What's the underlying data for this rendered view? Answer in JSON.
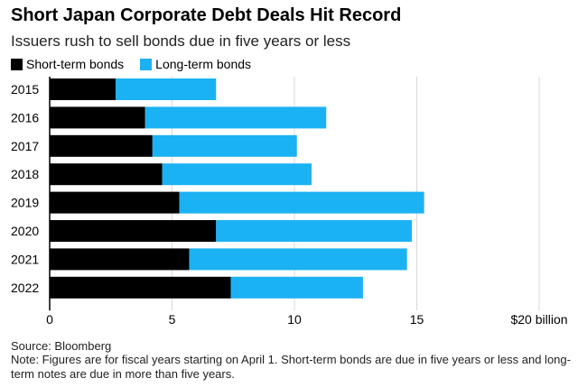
{
  "colors": {
    "short": "#000000",
    "long": "#1bb2f3",
    "grid": "#d9d9d9",
    "axis": "#000000"
  },
  "chart_data": {
    "type": "bar",
    "orientation": "horizontal",
    "stacked": true,
    "title": "Short Japan Corporate Debt Deals Hit Record",
    "subtitle": "Issuers rush to sell bonds due in five years or less",
    "categories": [
      "2015",
      "2016",
      "2017",
      "2018",
      "2019",
      "2020",
      "2021",
      "2022"
    ],
    "series": [
      {
        "name": "Short-term bonds",
        "values": [
          2.7,
          3.9,
          4.2,
          4.6,
          5.3,
          6.8,
          5.7,
          7.4
        ]
      },
      {
        "name": "Long-term bonds",
        "values": [
          4.1,
          7.4,
          5.9,
          6.1,
          10.0,
          8.0,
          8.9,
          5.4
        ]
      }
    ],
    "xlim": [
      0,
      20
    ],
    "xticks": [
      0,
      5,
      10,
      15,
      20
    ],
    "xtick_labels": [
      "0",
      "5",
      "10",
      "15",
      "$20 billion"
    ],
    "grid": true,
    "legend_placement": "top-left"
  },
  "source": "Source: Bloomberg",
  "note": "Note: Figures are for fiscal years starting on April 1. Short-term bonds are due in five years or less and long-term notes are due in more than five years."
}
